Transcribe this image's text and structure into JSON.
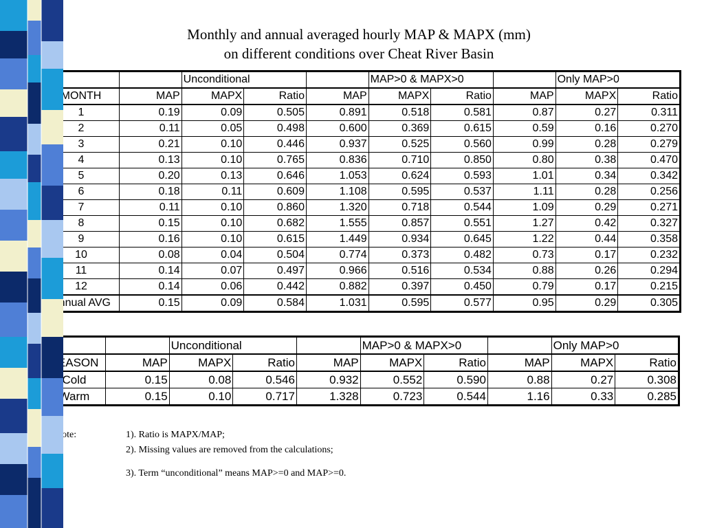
{
  "title": [
    "Monthly and annual averaged hourly MAP & MAPX (mm)",
    "on different conditions over Cheat River Basin"
  ],
  "monthly_table": {
    "groups": [
      "Unconditional",
      "MAP>0 & MAPX>0",
      "Only MAP>0"
    ],
    "columns": [
      "MONTH",
      "MAP",
      "MAPX",
      "Ratio",
      "MAP",
      "MAPX",
      "Ratio",
      "MAP",
      "MAPX",
      "Ratio"
    ],
    "rows": [
      [
        "1",
        "0.19",
        "0.09",
        "0.505",
        "0.891",
        "0.518",
        "0.581",
        "0.87",
        "0.27",
        "0.311"
      ],
      [
        "2",
        "0.11",
        "0.05",
        "0.498",
        "0.600",
        "0.369",
        "0.615",
        "0.59",
        "0.16",
        "0.270"
      ],
      [
        "3",
        "0.21",
        "0.10",
        "0.446",
        "0.937",
        "0.525",
        "0.560",
        "0.99",
        "0.28",
        "0.279"
      ],
      [
        "4",
        "0.13",
        "0.10",
        "0.765",
        "0.836",
        "0.710",
        "0.850",
        "0.80",
        "0.38",
        "0.470"
      ],
      [
        "5",
        "0.20",
        "0.13",
        "0.646",
        "1.053",
        "0.624",
        "0.593",
        "1.01",
        "0.34",
        "0.342"
      ],
      [
        "6",
        "0.18",
        "0.11",
        "0.609",
        "1.108",
        "0.595",
        "0.537",
        "1.11",
        "0.28",
        "0.256"
      ],
      [
        "7",
        "0.11",
        "0.10",
        "0.860",
        "1.320",
        "0.718",
        "0.544",
        "1.09",
        "0.29",
        "0.271"
      ],
      [
        "8",
        "0.15",
        "0.10",
        "0.682",
        "1.555",
        "0.857",
        "0.551",
        "1.27",
        "0.42",
        "0.327"
      ],
      [
        "9",
        "0.16",
        "0.10",
        "0.615",
        "1.449",
        "0.934",
        "0.645",
        "1.22",
        "0.44",
        "0.358"
      ],
      [
        "10",
        "0.08",
        "0.04",
        "0.504",
        "0.774",
        "0.373",
        "0.482",
        "0.73",
        "0.17",
        "0.232"
      ],
      [
        "11",
        "0.14",
        "0.07",
        "0.497",
        "0.966",
        "0.516",
        "0.534",
        "0.88",
        "0.26",
        "0.294"
      ],
      [
        "12",
        "0.14",
        "0.06",
        "0.442",
        "0.882",
        "0.397",
        "0.450",
        "0.79",
        "0.17",
        "0.215"
      ],
      [
        "Annual AVG",
        "0.15",
        "0.09",
        "0.584",
        "1.031",
        "0.595",
        "0.577",
        "0.95",
        "0.29",
        "0.305"
      ]
    ]
  },
  "season_table": {
    "groups": [
      "Unconditional",
      "MAP>0 & MAPX>0",
      "Only MAP>0"
    ],
    "columns": [
      "SEASON",
      "MAP",
      "MAPX",
      "Ratio",
      "MAP",
      "MAPX",
      "Ratio",
      "MAP",
      "MAPX",
      "Ratio"
    ],
    "rows": [
      [
        "Cold",
        "0.15",
        "0.08",
        "0.546",
        "0.932",
        "0.552",
        "0.590",
        "0.88",
        "0.27",
        "0.308"
      ],
      [
        "Warm",
        "0.15",
        "0.10",
        "0.717",
        "1.328",
        "0.723",
        "0.544",
        "1.16",
        "0.33",
        "0.285"
      ]
    ]
  },
  "notes": {
    "label": "Note:",
    "items": [
      "1).  Ratio is MAPX/MAP;",
      "2).  Missing values are removed from the calculations;",
      "3).  Term “unconditional” means MAP>=0 and  MAP>=0."
    ]
  }
}
